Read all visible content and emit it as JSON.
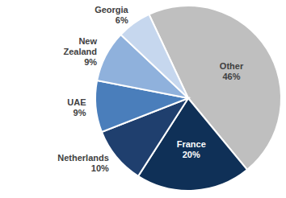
{
  "chart_data": {
    "type": "pie",
    "categories": [
      "Other",
      "France",
      "Netherlands",
      "UAE",
      "New Zealand",
      "Georgia"
    ],
    "values": [
      46,
      20,
      10,
      9,
      9,
      6
    ],
    "value_labels": [
      "46%",
      "20%",
      "10%",
      "9%",
      "9%",
      "6%"
    ],
    "colors": [
      "#bfbfbf",
      "#0f3057",
      "#1f3f6e",
      "#4a7ebb",
      "#8fb1dc",
      "#c6d7ee"
    ],
    "data_labels": true
  }
}
